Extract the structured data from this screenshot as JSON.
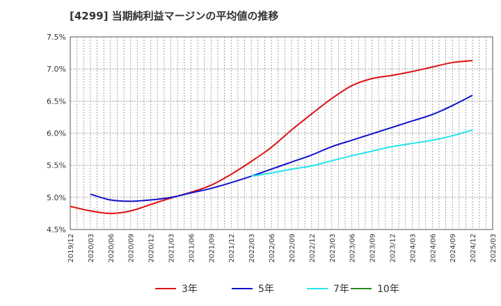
{
  "chart_data": {
    "type": "line",
    "title": "[4299]  当期純利益マージンの平均値の推移",
    "xlabel": "",
    "ylabel": "",
    "ylim": [
      4.5,
      7.5
    ],
    "y_ticks": [
      "4.5%",
      "5.0%",
      "5.5%",
      "6.0%",
      "6.5%",
      "7.0%",
      "7.5%"
    ],
    "y_tick_values": [
      4.5,
      5.0,
      5.5,
      6.0,
      6.5,
      7.0,
      7.5
    ],
    "x_ticks": [
      "2019/12",
      "2020/03",
      "2020/06",
      "2020/09",
      "2020/12",
      "2021/03",
      "2021/06",
      "2021/09",
      "2021/12",
      "2022/03",
      "2022/06",
      "2022/09",
      "2022/12",
      "2023/03",
      "2023/06",
      "2023/09",
      "2023/12",
      "2024/03",
      "2024/06",
      "2024/09",
      "2024/12",
      "2025/03"
    ],
    "grid": true,
    "legend_position": "bottom",
    "series": [
      {
        "name": "3年",
        "color": "#dd1111",
        "x": [
          "2019/12",
          "2020/03",
          "2020/06",
          "2020/09",
          "2020/12",
          "2021/03",
          "2021/06",
          "2021/09",
          "2021/12",
          "2022/03",
          "2022/06",
          "2022/09",
          "2022/12",
          "2023/03",
          "2023/06",
          "2023/09",
          "2023/12",
          "2024/03",
          "2024/06",
          "2024/09",
          "2024/12"
        ],
        "values": [
          4.86,
          4.79,
          4.75,
          4.79,
          4.89,
          4.99,
          5.08,
          5.19,
          5.36,
          5.56,
          5.78,
          6.05,
          6.3,
          6.54,
          6.74,
          6.85,
          6.9,
          6.96,
          7.03,
          7.1,
          7.13
        ]
      },
      {
        "name": "5年",
        "color": "#1111cc",
        "x": [
          "2020/03",
          "2020/06",
          "2020/09",
          "2020/12",
          "2021/03",
          "2021/06",
          "2021/09",
          "2021/12",
          "2022/03",
          "2022/06",
          "2022/09",
          "2022/12",
          "2023/03",
          "2023/06",
          "2023/09",
          "2023/12",
          "2024/03",
          "2024/06",
          "2024/09",
          "2024/12"
        ],
        "values": [
          5.05,
          4.96,
          4.94,
          4.96,
          5.0,
          5.07,
          5.14,
          5.23,
          5.33,
          5.44,
          5.55,
          5.66,
          5.79,
          5.89,
          5.99,
          6.09,
          6.19,
          6.29,
          6.43,
          6.59
        ]
      },
      {
        "name": "7年",
        "color": "#22e5ee",
        "x": [
          "2022/03",
          "2022/06",
          "2022/09",
          "2022/12",
          "2023/03",
          "2023/06",
          "2023/09",
          "2023/12",
          "2024/03",
          "2024/06",
          "2024/09",
          "2024/12"
        ],
        "values": [
          5.33,
          5.38,
          5.44,
          5.49,
          5.57,
          5.65,
          5.72,
          5.79,
          5.84,
          5.89,
          5.96,
          6.05
        ]
      },
      {
        "name": "10年",
        "color": "#228b22",
        "x": [],
        "values": []
      }
    ]
  }
}
